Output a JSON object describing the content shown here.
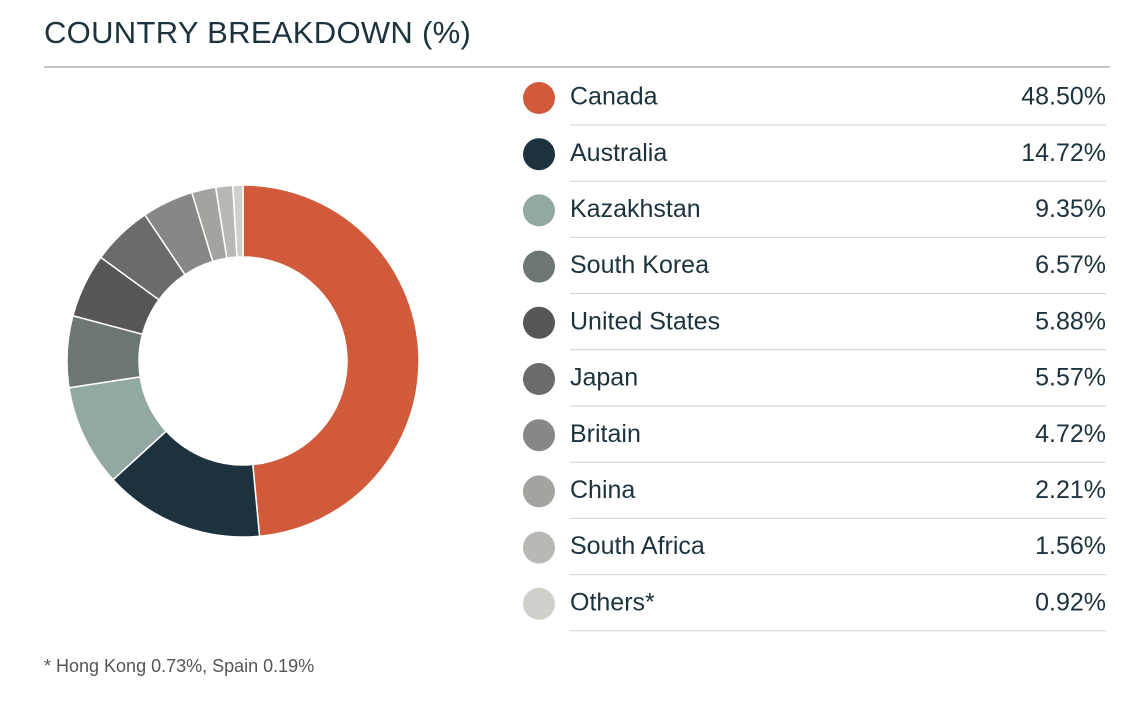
{
  "chart_data": {
    "type": "pie",
    "donut": true,
    "title": "COUNTRY BREAKDOWN (%)",
    "categories": [
      "Canada",
      "Australia",
      "Kazakhstan",
      "South Korea",
      "United States",
      "Japan",
      "Britain",
      "China",
      "South Africa",
      "Others*"
    ],
    "values": [
      48.5,
      14.72,
      9.35,
      6.57,
      5.88,
      5.57,
      4.72,
      2.21,
      1.56,
      0.92
    ],
    "value_labels": [
      "48.50%",
      "14.72%",
      "9.35%",
      "6.57%",
      "5.88%",
      "5.57%",
      "4.72%",
      "2.21%",
      "1.56%",
      "0.92%"
    ],
    "colors": [
      "#d05a3a",
      "#1c323d",
      "#91a8a3",
      "#6e7674",
      "#565656",
      "#6b6b69",
      "#878785",
      "#a3a39f",
      "#b8b8b5",
      "#d0d0cb"
    ],
    "footnote": "* Hong Kong 0.73%, Spain 0.19%"
  }
}
